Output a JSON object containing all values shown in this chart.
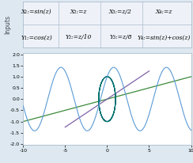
{
  "x1_label": "X₁:=sin(z)",
  "x2_label": "X₂:=z",
  "x3_label": "X₃:=z/2",
  "x4_label": "X₄:=z",
  "y1_label": "Y₁:=cos(z)",
  "y2_label": "Y₂:=z/10",
  "y3_label": "Y₃:=z/8",
  "y4_label": "Y₄:=sin(z)+cos(z)",
  "t_start": -10,
  "t_end": 10,
  "t_steps": 2000,
  "xlim": [
    -10,
    10
  ],
  "ylim": [
    -2.05,
    2.05
  ],
  "yticks": [
    -2.0,
    -1.5,
    -1.0,
    -0.5,
    0.0,
    0.5,
    1.0,
    1.5,
    2.0
  ],
  "xticks": [
    -10,
    -5,
    0,
    5,
    10
  ],
  "colors": [
    "#007070",
    "#3a8a3a",
    "#8060aa",
    "#5b9bd5"
  ],
  "bg_color": "#dde8f0",
  "plot_bg": "#ffffff",
  "header_bg": "#eef2f8",
  "font_size": 5.5,
  "side_label": "Inputs"
}
